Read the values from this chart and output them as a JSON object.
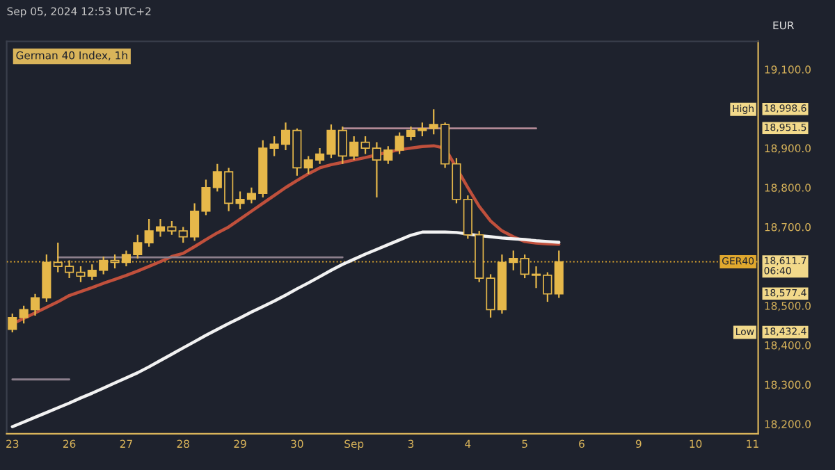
{
  "chart_data": {
    "type": "candlestick",
    "title": "German 40 Index, 1h",
    "annotations": [
      "Sep 05, 2024 12:53 UTC+2",
      "EUR",
      "High",
      "18,998.6",
      "18,951.5",
      "18,611.7\n06:40",
      "18,577.4",
      "Low",
      "18,432.4"
    ],
    "categories": [
      "23",
      null,
      null,
      null,
      null,
      "26",
      null,
      null,
      null,
      null,
      "27",
      null,
      null,
      null,
      null,
      "28",
      null,
      null,
      null,
      null,
      "29",
      null,
      null,
      null,
      null,
      "30",
      null,
      null,
      null,
      null,
      "Sep",
      null,
      null,
      null,
      null,
      "3",
      null,
      null,
      null,
      null,
      "4",
      null,
      null,
      null,
      null,
      "5",
      null,
      null,
      null,
      null,
      "6",
      null,
      null,
      null,
      null,
      "9",
      null,
      null,
      null,
      null,
      "10",
      null,
      null,
      null,
      null,
      "11"
    ],
    "ohlc": [
      [
        18440,
        18480,
        18432.4,
        18470
      ],
      [
        18470,
        18500,
        18455,
        18490
      ],
      [
        18490,
        18530,
        18475,
        18520
      ],
      [
        18520,
        18630,
        18510,
        18610
      ],
      [
        18610,
        18660,
        18585,
        18600
      ],
      [
        18600,
        18615,
        18570,
        18585
      ],
      [
        18585,
        18600,
        18560,
        18575
      ],
      [
        18575,
        18605,
        18565,
        18590
      ],
      [
        18590,
        18625,
        18580,
        18615
      ],
      [
        18615,
        18630,
        18595,
        18610
      ],
      [
        18610,
        18640,
        18600,
        18630
      ],
      [
        18630,
        18680,
        18620,
        18660
      ],
      [
        18660,
        18720,
        18650,
        18690
      ],
      [
        18690,
        18720,
        18675,
        18700
      ],
      [
        18700,
        18715,
        18680,
        18690
      ],
      [
        18690,
        18700,
        18660,
        18675
      ],
      [
        18675,
        18760,
        18665,
        18740
      ],
      [
        18740,
        18820,
        18730,
        18800
      ],
      [
        18800,
        18860,
        18790,
        18840
      ],
      [
        18840,
        18850,
        18740,
        18760
      ],
      [
        18760,
        18790,
        18745,
        18770
      ],
      [
        18770,
        18800,
        18760,
        18785
      ],
      [
        18785,
        18920,
        18775,
        18900
      ],
      [
        18900,
        18930,
        18880,
        18910
      ],
      [
        18910,
        18965,
        18895,
        18945
      ],
      [
        18945,
        18950,
        18830,
        18850
      ],
      [
        18850,
        18880,
        18835,
        18870
      ],
      [
        18870,
        18900,
        18860,
        18885
      ],
      [
        18885,
        18960,
        18875,
        18945
      ],
      [
        18945,
        18955,
        18860,
        18880
      ],
      [
        18880,
        18930,
        18870,
        18915
      ],
      [
        18915,
        18930,
        18885,
        18900
      ],
      [
        18900,
        18915,
        18775,
        18870
      ],
      [
        18870,
        18905,
        18860,
        18895
      ],
      [
        18895,
        18940,
        18885,
        18930
      ],
      [
        18930,
        18955,
        18920,
        18945
      ],
      [
        18945,
        18965,
        18930,
        18950
      ],
      [
        18950,
        18998.6,
        18935,
        18960
      ],
      [
        18960,
        18965,
        18850,
        18860
      ],
      [
        18860,
        18875,
        18760,
        18770
      ],
      [
        18770,
        18780,
        18670,
        18680
      ],
      [
        18680,
        18690,
        18560,
        18570
      ],
      [
        18570,
        18580,
        18470,
        18490
      ],
      [
        18490,
        18630,
        18480,
        18610
      ],
      [
        18610,
        18640,
        18590,
        18620
      ],
      [
        18620,
        18630,
        18570,
        18580
      ],
      [
        18580,
        18600,
        18545,
        18577.4
      ],
      [
        18577.4,
        18585,
        18510,
        18530
      ],
      [
        18530,
        18640,
        18520,
        18611.7
      ],
      null,
      null,
      null,
      null,
      null,
      null,
      null,
      null,
      null,
      null,
      null,
      null,
      null,
      null,
      null,
      null,
      null
    ],
    "color": "#e6b84a",
    "series": [
      {
        "type": "line",
        "color": "#c0503c",
        "values": [
          18454,
          18468,
          18482,
          18496,
          18510,
          18526,
          18536,
          18546,
          18557,
          18567,
          18577,
          18588,
          18600,
          18612,
          18625,
          18633,
          18650,
          18668,
          18685,
          18700,
          18720,
          18740,
          18760,
          18780,
          18800,
          18818,
          18835,
          18850,
          18858,
          18864,
          18870,
          18876,
          18883,
          18890,
          18896,
          18900,
          18904,
          18906,
          18900,
          18850,
          18800,
          18752,
          18715,
          18690,
          18675,
          18663,
          18659,
          18657,
          18656,
          null,
          null,
          null,
          null,
          null,
          null,
          null,
          null,
          null,
          null,
          null,
          null,
          null,
          null,
          null,
          null,
          null
        ]
      },
      {
        "type": "line",
        "color": "#f2f2f2",
        "values": [
          18193,
          18205,
          18217,
          18229,
          18241,
          18253,
          18266,
          18278,
          18291,
          18304,
          18317,
          18330,
          18345,
          18361,
          18377,
          18393,
          18409,
          18425,
          18440,
          18455,
          18469,
          18484,
          18498,
          18512,
          18527,
          18543,
          18558,
          18574,
          18590,
          18605,
          18618,
          18631,
          18643,
          18655,
          18667,
          18679,
          18687,
          18687,
          18687,
          18686,
          18682,
          18678,
          18675,
          18672,
          18670,
          18668,
          18665,
          18663,
          18661,
          null,
          null,
          null,
          null,
          null,
          null,
          null,
          null,
          null,
          null,
          null,
          null,
          null,
          null,
          null,
          null,
          null
        ]
      },
      {
        "type": "line",
        "color": "#8c7f8c",
        "values": [
          null,
          null,
          null,
          null,
          18623,
          18623,
          18623,
          18623,
          18623,
          18623,
          18623,
          18623,
          18623,
          18623,
          18623,
          18623,
          18623,
          18623,
          18623,
          18623,
          18623,
          18623,
          18623,
          18623,
          18623,
          18623,
          18623,
          18623,
          18623,
          18623,
          null,
          null,
          null,
          null,
          null,
          null,
          null,
          null,
          null,
          null,
          null,
          null,
          null,
          null,
          null,
          null,
          null,
          null,
          null,
          null,
          null,
          null,
          null,
          null,
          null,
          null,
          null,
          null,
          null,
          null,
          null,
          null,
          null,
          null,
          null,
          null
        ]
      },
      {
        "type": "line",
        "color": "#b38a96",
        "values": [
          null,
          null,
          null,
          null,
          null,
          null,
          null,
          null,
          null,
          null,
          null,
          null,
          null,
          null,
          null,
          null,
          null,
          null,
          null,
          null,
          null,
          null,
          null,
          null,
          null,
          null,
          null,
          null,
          null,
          18950,
          18950,
          18950,
          18950,
          18950,
          18950,
          18950,
          18950,
          18950,
          18950,
          18950,
          18950,
          18950,
          18950,
          18950,
          18950,
          18950,
          18950,
          null,
          null,
          null,
          null,
          null,
          null,
          null,
          null,
          null,
          null,
          null,
          null,
          null,
          null,
          null,
          null,
          null,
          null,
          null
        ]
      },
      {
        "type": "line",
        "color": "#8c7f8c",
        "values": [
          18313,
          18313,
          18313,
          18313,
          18313,
          18313,
          null,
          null,
          null,
          null,
          null,
          null,
          null,
          null,
          null,
          null,
          null,
          null,
          null,
          null,
          null,
          null,
          null,
          null,
          null,
          null,
          null,
          null,
          null,
          null,
          null,
          null,
          null,
          null,
          null,
          null,
          null,
          null,
          null,
          null,
          null,
          null,
          null,
          null,
          null,
          null,
          null,
          null,
          null,
          null,
          null,
          null,
          null,
          null,
          null,
          null,
          null,
          null,
          null,
          null,
          null,
          null,
          null,
          null,
          null,
          null
        ]
      }
    ],
    "ref_lines": [
      {
        "axis": "y",
        "value": 18611.7,
        "label": "GER40",
        "color": "#e0a82e",
        "line_style": "dotted"
      }
    ],
    "ylim": [
      18175,
      19171
    ],
    "yticks": [
      {
        "value": 18200,
        "label": "18,200.0"
      },
      {
        "value": 18300,
        "label": "18,300.0"
      },
      {
        "value": 18400,
        "label": "18,400.0"
      },
      {
        "value": 18500,
        "label": "18,500.0"
      },
      {
        "value": 18700,
        "label": "18,700.0"
      },
      {
        "value": 18800,
        "label": "18,800.0"
      },
      {
        "value": 18900,
        "label": "18,900.0"
      },
      {
        "value": 19100,
        "label": "19,100.0"
      }
    ]
  }
}
